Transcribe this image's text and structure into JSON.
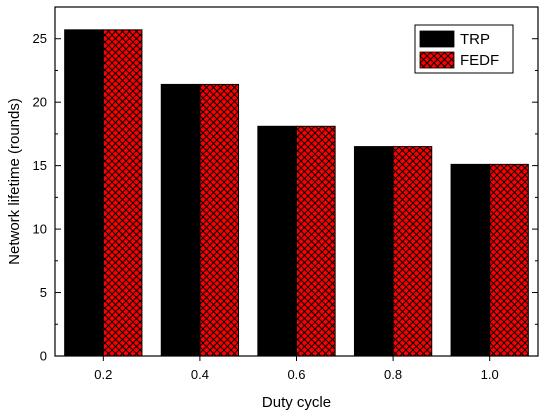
{
  "chart_data": {
    "type": "bar",
    "title": "",
    "xlabel": "Duty cycle",
    "ylabel": "Network lifetime (rounds)",
    "categories": [
      "0.2",
      "0.4",
      "0.6",
      "0.8",
      "1.0"
    ],
    "series": [
      {
        "name": "TRP",
        "values": [
          25.7,
          21.4,
          18.1,
          16.5,
          15.1
        ],
        "color": "#000000",
        "pattern": "solid"
      },
      {
        "name": "FEDF",
        "values": [
          25.7,
          21.4,
          18.1,
          16.5,
          15.1
        ],
        "color": "#ff0000",
        "pattern": "crosshatch"
      }
    ],
    "ylim": [
      0,
      27.5
    ],
    "yticks": [
      0,
      5,
      10,
      15,
      20,
      25
    ],
    "legend_position": "top-right",
    "grid": false
  }
}
